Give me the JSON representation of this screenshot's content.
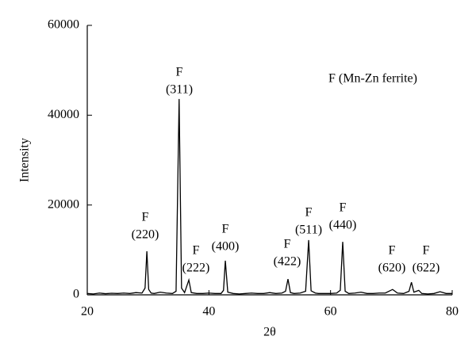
{
  "chart_data": {
    "type": "line",
    "note": "F (Mn-Zn ferrite)",
    "xlabel": "2θ",
    "ylabel": "Intensity",
    "xlim": [
      20,
      80
    ],
    "xticks": [
      20,
      40,
      60,
      80
    ],
    "ylim": [
      0,
      60000
    ],
    "yticks": [
      0,
      20000,
      40000,
      60000
    ],
    "color": "#000000",
    "annotations": [
      {
        "lines": [
          "F",
          "(220)"
        ]
      },
      {
        "lines": [
          "F",
          "(311)"
        ]
      },
      {
        "lines": [
          "F",
          "(222)"
        ]
      },
      {
        "lines": [
          "F",
          "(400)"
        ]
      },
      {
        "lines": [
          "F",
          "(422)"
        ]
      },
      {
        "lines": [
          "F",
          "(511)"
        ]
      },
      {
        "lines": [
          "F",
          "(440)"
        ]
      },
      {
        "lines": [
          "F",
          "(620)"
        ]
      },
      {
        "lines": [
          "F",
          "(622)"
        ]
      }
    ],
    "x": [
      20,
      21,
      22,
      23,
      24,
      25,
      26,
      27,
      28,
      29,
      29.5,
      29.8,
      30.1,
      30.5,
      31,
      32,
      33,
      34,
      34.6,
      35.1,
      35.5,
      36,
      36.7,
      37.1,
      38,
      39,
      40,
      41,
      42,
      42.4,
      42.7,
      43.1,
      44,
      45,
      46,
      47,
      48,
      49,
      50,
      51,
      52,
      52.6,
      53.0,
      53.4,
      54,
      55,
      55.9,
      56.4,
      56.8,
      57.5,
      58,
      59,
      60,
      61,
      61.6,
      62.0,
      62.4,
      63,
      64,
      65,
      66,
      67,
      68,
      69,
      70.2,
      71,
      72,
      72.9,
      73.3,
      73.7,
      74.5,
      75,
      76,
      77,
      78,
      79,
      80
    ],
    "values": [
      300,
      200,
      400,
      250,
      350,
      300,
      400,
      300,
      500,
      400,
      1500,
      9700,
      1200,
      400,
      300,
      600,
      400,
      300,
      800,
      43600,
      1500,
      500,
      3300,
      500,
      300,
      300,
      400,
      300,
      300,
      1000,
      7600,
      600,
      300,
      200,
      300,
      400,
      300,
      300,
      500,
      300,
      400,
      800,
      3500,
      500,
      300,
      400,
      800,
      12200,
      900,
      400,
      300,
      300,
      300,
      400,
      1000,
      11800,
      800,
      300,
      400,
      600,
      300,
      300,
      400,
      400,
      1200,
      400,
      300,
      800,
      2800,
      600,
      1000,
      300,
      200,
      300,
      700,
      300,
      300
    ]
  }
}
